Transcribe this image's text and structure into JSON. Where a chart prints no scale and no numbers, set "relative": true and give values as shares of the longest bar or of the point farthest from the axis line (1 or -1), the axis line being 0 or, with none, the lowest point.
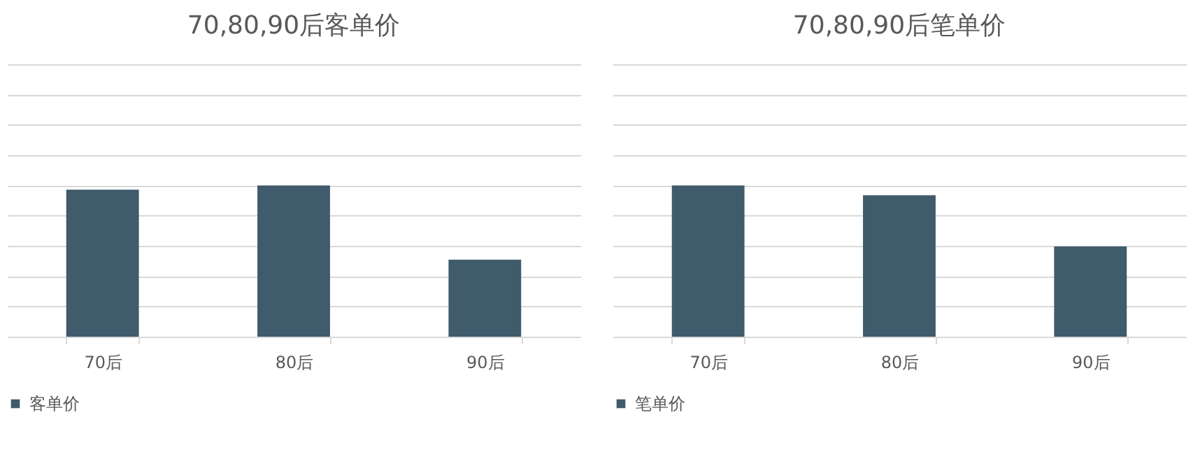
{
  "chart_data": [
    {
      "type": "bar",
      "title": "70,80,90后客单价",
      "categories": [
        "70后",
        "80后",
        "90后"
      ],
      "relative": true,
      "grid": "y",
      "legend": "bottom",
      "series": [
        {
          "name": "客单价",
          "color": "#3f5b6c",
          "values": [
            0.972,
            1,
            0.509
          ]
        }
      ]
    },
    {
      "type": "bar",
      "title": "70,80,90后笔单价",
      "categories": [
        "70后",
        "80后",
        "90后"
      ],
      "relative": true,
      "grid": "y",
      "legend": "bottom",
      "series": [
        {
          "name": "笔单价",
          "color": "#3f5b6c",
          "values": [
            1,
            0.935,
            0.597
          ]
        }
      ]
    }
  ]
}
